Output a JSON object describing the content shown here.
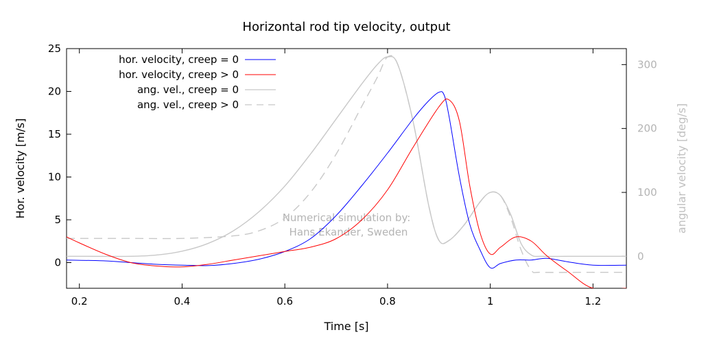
{
  "chart_data": {
    "type": "line",
    "title": "Horizontal rod tip velocity, output",
    "xlabel": "Time [s]",
    "ylabel": "Hor. velocity [m/s]",
    "y2label": "angular velocity [deg/s]",
    "xlim": [
      0.175,
      1.265
    ],
    "ylim": [
      -3,
      25
    ],
    "y2lim": [
      -50,
      325
    ],
    "xticks": [
      0.2,
      0.4,
      0.6,
      0.8,
      1,
      1.2
    ],
    "xtick_labels": [
      "0.2",
      "0.4",
      "0.6",
      "0.8",
      "1",
      "1.2"
    ],
    "yticks": [
      0,
      5,
      10,
      15,
      20,
      25
    ],
    "ytick_labels": [
      "0",
      "5",
      "10",
      "15",
      "20",
      "25"
    ],
    "y2ticks": [
      0,
      100,
      200,
      300
    ],
    "y2tick_labels": [
      "0",
      "100",
      "200",
      "300"
    ],
    "grid": false,
    "legend_position": "top-left",
    "annotation": [
      "Numerical simulation by:",
      "Hans Ekander, Sweden"
    ],
    "series": [
      {
        "name": "hor. velocity, creep = 0",
        "axis": "left",
        "color": "#0000ff",
        "style": "solid",
        "x": [
          0.175,
          0.25,
          0.3,
          0.35,
          0.4,
          0.45,
          0.5,
          0.55,
          0.6,
          0.65,
          0.7,
          0.75,
          0.8,
          0.85,
          0.88,
          0.9,
          0.91,
          0.92,
          0.94,
          0.96,
          0.98,
          1.0,
          1.02,
          1.05,
          1.08,
          1.11,
          1.15,
          1.2,
          1.265
        ],
        "y": [
          0.3,
          0.2,
          0.0,
          -0.2,
          -0.3,
          -0.35,
          -0.1,
          0.4,
          1.3,
          2.8,
          5.5,
          9.0,
          12.8,
          16.8,
          18.9,
          19.9,
          19.6,
          17.0,
          10.0,
          4.5,
          1.5,
          -0.6,
          -0.1,
          0.3,
          0.3,
          0.5,
          0.1,
          -0.3,
          -0.3
        ]
      },
      {
        "name": "hor. velocity, creep > 0",
        "axis": "left",
        "color": "#ff0000",
        "style": "solid",
        "x": [
          0.175,
          0.2,
          0.25,
          0.3,
          0.35,
          0.4,
          0.45,
          0.5,
          0.55,
          0.6,
          0.65,
          0.7,
          0.75,
          0.8,
          0.85,
          0.9,
          0.92,
          0.94,
          0.96,
          0.98,
          1.0,
          1.02,
          1.05,
          1.08,
          1.11,
          1.15,
          1.2,
          1.265
        ],
        "y": [
          3.0,
          2.3,
          1.0,
          0.0,
          -0.4,
          -0.5,
          -0.2,
          0.3,
          0.8,
          1.3,
          1.8,
          2.8,
          5.0,
          8.5,
          13.5,
          18.2,
          19.0,
          16.5,
          9.0,
          3.5,
          1.0,
          1.8,
          3.0,
          2.5,
          0.8,
          -1.0,
          -3.0,
          -3.0
        ]
      },
      {
        "name": "ang. vel., creep = 0",
        "axis": "right",
        "color": "#c8c8c8",
        "style": "solid",
        "x": [
          0.175,
          0.2,
          0.3,
          0.35,
          0.4,
          0.45,
          0.5,
          0.55,
          0.6,
          0.65,
          0.7,
          0.75,
          0.78,
          0.8,
          0.82,
          0.85,
          0.88,
          0.9,
          0.92,
          0.95,
          0.98,
          1.0,
          1.02,
          1.04,
          1.06,
          1.08,
          1.1,
          1.15,
          1.2,
          1.265
        ],
        "y": [
          0,
          0,
          0,
          2,
          8,
          20,
          40,
          70,
          110,
          160,
          215,
          270,
          300,
          312,
          300,
          210,
          80,
          25,
          25,
          50,
          85,
          100,
          95,
          65,
          20,
          2,
          0,
          0,
          0,
          0
        ]
      },
      {
        "name": "ang. vel., creep > 0",
        "axis": "right",
        "color": "#c8c8c8",
        "style": "dashed",
        "x": [
          0.175,
          0.3,
          0.4,
          0.5,
          0.55,
          0.6,
          0.65,
          0.7,
          0.75,
          0.78,
          0.8,
          0.82,
          0.85,
          0.88,
          0.9,
          0.92,
          0.95,
          0.98,
          1.0,
          1.02,
          1.04,
          1.06,
          1.08,
          1.1,
          1.2,
          1.265
        ],
        "y": [
          28,
          28,
          28,
          32,
          40,
          60,
          100,
          160,
          235,
          280,
          312,
          300,
          210,
          80,
          25,
          25,
          50,
          85,
          100,
          95,
          60,
          10,
          -22,
          -25,
          -25,
          -25
        ]
      }
    ]
  }
}
